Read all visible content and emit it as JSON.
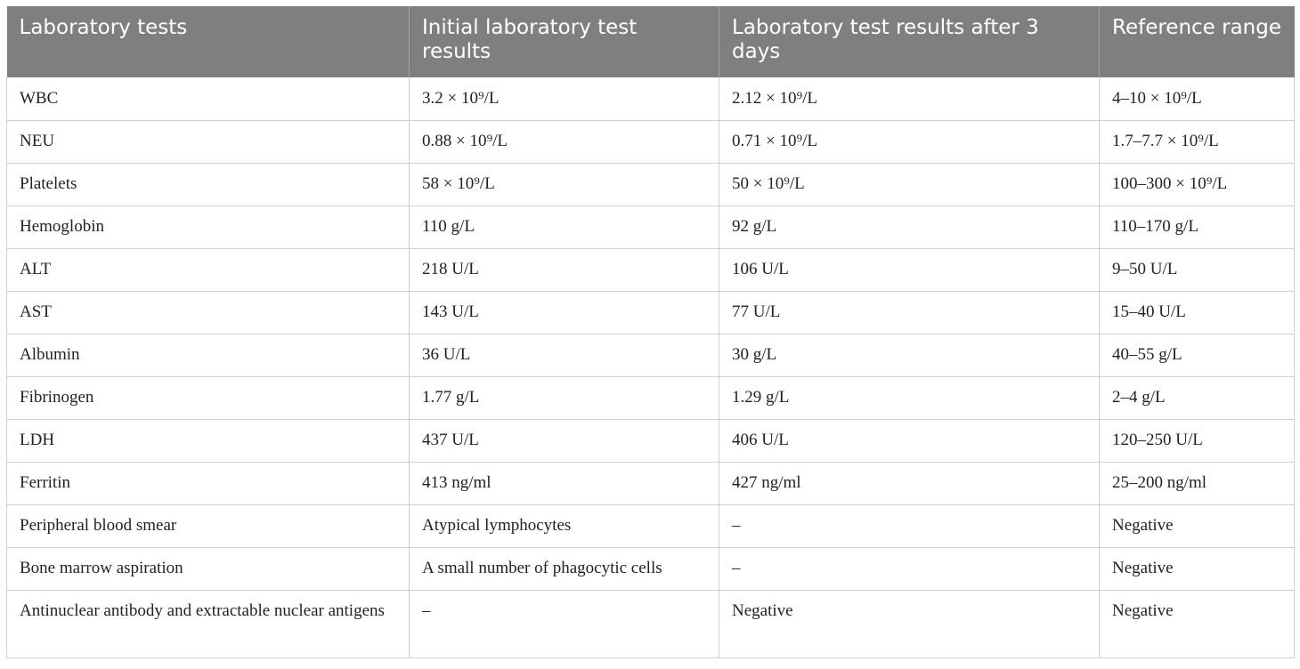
{
  "table": {
    "headers": [
      "Laboratory tests",
      "Initial laboratory test results",
      "Laboratory test results after 3 days",
      "Reference range"
    ],
    "rows": [
      [
        "WBC",
        "3.2 × 10⁹/L",
        "2.12 × 10⁹/L",
        "4–10 × 10⁹/L"
      ],
      [
        "NEU",
        "0.88 × 10⁹/L",
        "0.71 × 10⁹/L",
        "1.7–7.7 × 10⁹/L"
      ],
      [
        "Platelets",
        "58 × 10⁹/L",
        "50 × 10⁹/L",
        "100–300 × 10⁹/L"
      ],
      [
        "Hemoglobin",
        "110 g/L",
        "92 g/L",
        "110–170 g/L"
      ],
      [
        "ALT",
        "218 U/L",
        "106 U/L",
        "9–50 U/L"
      ],
      [
        "AST",
        "143 U/L",
        "77 U/L",
        "15–40 U/L"
      ],
      [
        "Albumin",
        "36 U/L",
        "30 g/L",
        "40–55 g/L"
      ],
      [
        "Fibrinogen",
        "1.77 g/L",
        "1.29 g/L",
        "2–4 g/L"
      ],
      [
        "LDH",
        "437 U/L",
        "406 U/L",
        "120–250 U/L"
      ],
      [
        "Ferritin",
        "413 ng/ml",
        "427 ng/ml",
        "25–200 ng/ml"
      ],
      [
        "Peripheral blood smear",
        "Atypical lymphocytes",
        "–",
        "Negative"
      ],
      [
        "Bone marrow aspiration",
        "A small number of phagocytic cells",
        "–",
        "Negative"
      ],
      [
        "Antinuclear antibody and extractable nuclear antigens",
        "–",
        "Negative",
        "Negative"
      ]
    ]
  },
  "colors": {
    "header_bg": "#7f7f7f",
    "header_text": "#ffffff",
    "grid": "#cfcfcf"
  }
}
